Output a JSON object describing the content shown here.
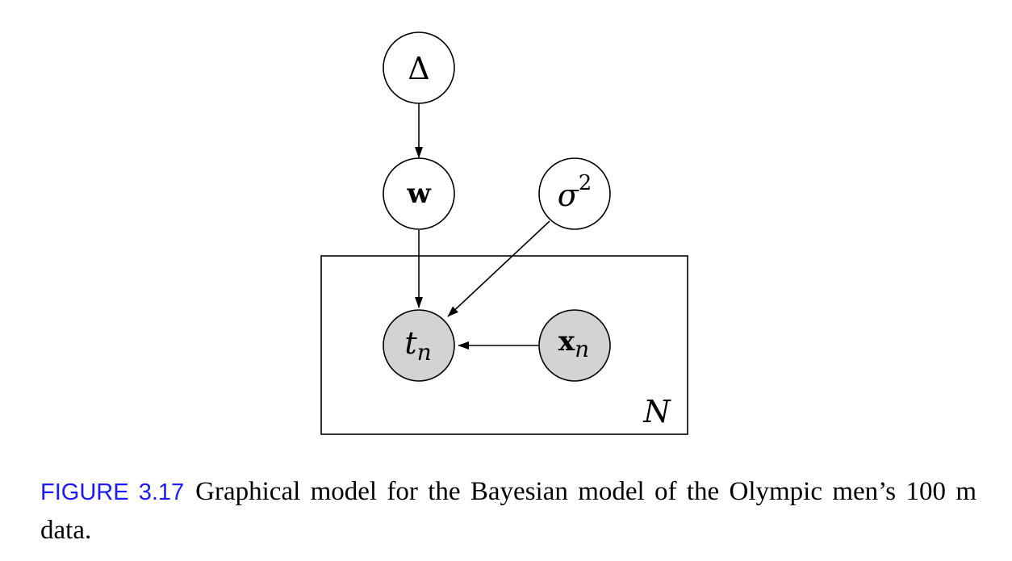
{
  "diagram": {
    "nodes": [
      {
        "id": "delta",
        "label": "Δ",
        "sub": "",
        "sup": "",
        "style": "upright",
        "observed": false
      },
      {
        "id": "w",
        "label": "w",
        "sub": "",
        "sup": "",
        "style": "bold",
        "observed": false
      },
      {
        "id": "sigma",
        "label": "σ",
        "sub": "",
        "sup": "2",
        "style": "italic",
        "observed": false
      },
      {
        "id": "t",
        "label": "t",
        "sub": "n",
        "sup": "",
        "style": "italic",
        "observed": true
      },
      {
        "id": "x",
        "label": "x",
        "sub": "n",
        "sup": "",
        "style": "bold",
        "observed": true
      }
    ],
    "edges": [
      {
        "from": "delta",
        "to": "w"
      },
      {
        "from": "w",
        "to": "t"
      },
      {
        "from": "sigma",
        "to": "t"
      },
      {
        "from": "x",
        "to": "t"
      }
    ],
    "plate": {
      "label": "N"
    }
  },
  "caption": {
    "label": "FIGURE 3.17",
    "text": "Graphical model for the Bayesian model of the Olympic men’s 100 m data."
  },
  "colors": {
    "caption_label": "#1a1aff",
    "observed_fill": "#d1d3d4"
  }
}
